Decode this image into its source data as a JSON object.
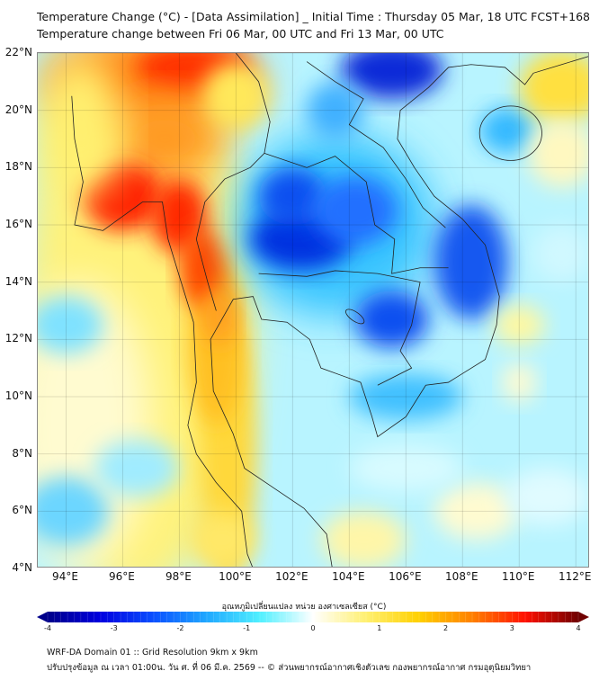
{
  "title": {
    "line1": "Temperature Change (°C) - [Data Assimilation] _ Initial Time : Thursday 05 Mar, 18 UTC FCST+168",
    "line2": "Temperature change between Fri 06 Mar, 00 UTC and Fri 13 Mar, 00 UTC"
  },
  "map": {
    "lat_labels": [
      "22°N",
      "20°N",
      "18°N",
      "16°N",
      "14°N",
      "12°N",
      "10°N",
      "8°N",
      "6°N",
      "4°N"
    ],
    "lat_values": [
      22,
      20,
      18,
      16,
      14,
      12,
      10,
      8,
      6,
      4
    ],
    "lon_labels": [
      "94°E",
      "96°E",
      "98°E",
      "100°E",
      "102°E",
      "104°E",
      "106°E",
      "108°E",
      "110°E",
      "112°E"
    ],
    "lon_values": [
      94,
      96,
      98,
      100,
      102,
      104,
      106,
      108,
      110,
      112
    ],
    "lon_range": [
      93,
      112.5
    ],
    "lat_range": [
      4,
      22
    ]
  },
  "colorbar": {
    "title": "อุณหภูมิเปลี่ยนแปลง หน่วย องศาเซลเซียส (°C)",
    "ticks": [
      "-4",
      "-3",
      "-2",
      "-1",
      "0",
      "1",
      "2",
      "3",
      "4"
    ],
    "range": [
      -4,
      4
    ],
    "colors": [
      "#00008a",
      "#0000e0",
      "#0a50ff",
      "#20a8ff",
      "#50f0ff",
      "#ffffff",
      "#fff070",
      "#ffd000",
      "#ff8000",
      "#ff1000",
      "#700000"
    ]
  },
  "footer": {
    "line1": "WRF-DA Domain 01 :: Grid Resolution 9km x 9km",
    "line2": "ปรับปรุงข้อมูล ณ เวลา 01:00น. วัน ศ. ที่ 06 มี.ค. 2569 -- © ส่วนพยากรณ์อากาศเชิงตัวเลข กองพยากรณ์อากาศ กรมอุตุนิยมวิทยา"
  }
}
